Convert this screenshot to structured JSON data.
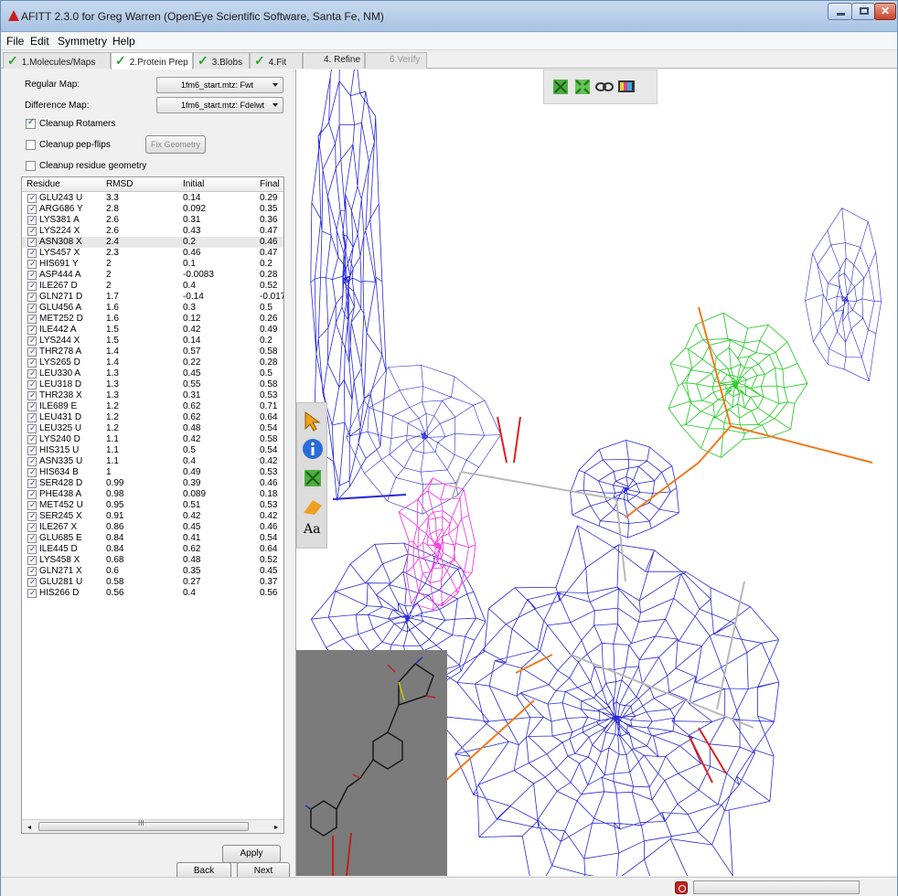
{
  "window": {
    "title": "AFITT 2.3.0 for Greg Warren (OpenEye Scientific Software, Santa Fe, NM)"
  },
  "menu": {
    "items": [
      "File",
      "Edit",
      "Symmetry",
      "Help"
    ]
  },
  "tabs": [
    {
      "label": "1.Molecules/Maps",
      "done": true
    },
    {
      "label": "2.Protein Prep",
      "done": true,
      "active": true
    },
    {
      "label": "3.Blobs",
      "done": true
    },
    {
      "label": "4.Fit",
      "done": true
    },
    {
      "label": "4. Refine",
      "done": false
    },
    {
      "label": "6.Verify",
      "done": false,
      "disabled": true
    }
  ],
  "panel": {
    "regular_map_label": "Regular Map:",
    "regular_map_value": "1fm6_start.mtz: Fwt",
    "difference_map_label": "Difference Map:",
    "difference_map_value": "1fm6_start.mtz: Fdelwt",
    "cleanup_rotamers": {
      "label": "Cleanup Rotamers",
      "checked": true
    },
    "cleanup_pepflips": {
      "label": "Cleanup pep-flips",
      "checked": false
    },
    "fix_geometry_label": "Fix Geometry",
    "cleanup_residue_geometry": {
      "label": "Cleanup residue geometry",
      "checked": false
    }
  },
  "table": {
    "columns": [
      "Residue",
      "RMSD",
      "Initial",
      "Final"
    ],
    "rows": [
      [
        "GLU243 U",
        "3.3",
        "0.14",
        "0.29"
      ],
      [
        "ARG686 Y",
        "2.8",
        "0.092",
        "0.35"
      ],
      [
        "LYS381 A",
        "2.6",
        "0.31",
        "0.36"
      ],
      [
        "LYS224 X",
        "2.6",
        "0.43",
        "0.47"
      ],
      [
        "ASN308 X",
        "2.4",
        "0.2",
        "0.46"
      ],
      [
        "LYS457 X",
        "2.3",
        "0.46",
        "0.47"
      ],
      [
        "HIS691 Y",
        "2",
        "0.1",
        "0.2"
      ],
      [
        "ASP444 A",
        "2",
        "-0.0083",
        "0.28"
      ],
      [
        "ILE267 D",
        "2",
        "0.4",
        "0.52"
      ],
      [
        "GLN271 D",
        "1.7",
        "-0.14",
        "-0.017"
      ],
      [
        "GLU456 A",
        "1.6",
        "0.3",
        "0.5"
      ],
      [
        "MET252 D",
        "1.6",
        "0.12",
        "0.26"
      ],
      [
        "ILE442 A",
        "1.5",
        "0.42",
        "0.49"
      ],
      [
        "LYS244 X",
        "1.5",
        "0.14",
        "0.2"
      ],
      [
        "THR278 A",
        "1.4",
        "0.57",
        "0.58"
      ],
      [
        "LYS265 D",
        "1.4",
        "0.22",
        "0.28"
      ],
      [
        "LEU330 A",
        "1.3",
        "0.45",
        "0.5"
      ],
      [
        "LEU318 D",
        "1.3",
        "0.55",
        "0.58"
      ],
      [
        "THR238 X",
        "1.3",
        "0.31",
        "0.53"
      ],
      [
        "ILE689 E",
        "1.2",
        "0.62",
        "0.71"
      ],
      [
        "LEU431 D",
        "1.2",
        "0.62",
        "0.64"
      ],
      [
        "LEU325 U",
        "1.2",
        "0.48",
        "0.54"
      ],
      [
        "LYS240 D",
        "1.1",
        "0.42",
        "0.58"
      ],
      [
        "HIS315 U",
        "1.1",
        "0.5",
        "0.54"
      ],
      [
        "ASN335 U",
        "1.1",
        "0.4",
        "0.42"
      ],
      [
        "HIS634 B",
        "1",
        "0.49",
        "0.53"
      ],
      [
        "SER428 D",
        "0.99",
        "0.39",
        "0.46"
      ],
      [
        "PHE438 A",
        "0.98",
        "0.089",
        "0.18"
      ],
      [
        "MET452 U",
        "0.95",
        "0.51",
        "0.53"
      ],
      [
        "SER245 X",
        "0.91",
        "0.42",
        "0.42"
      ],
      [
        "ILE267 X",
        "0.86",
        "0.45",
        "0.46"
      ],
      [
        "GLU685 E",
        "0.84",
        "0.41",
        "0.54"
      ],
      [
        "ILE445 D",
        "0.84",
        "0.62",
        "0.64"
      ],
      [
        "LYS458 X",
        "0.68",
        "0.48",
        "0.52"
      ],
      [
        "GLN271 X",
        "0.6",
        "0.35",
        "0.45"
      ],
      [
        "GLU281 U",
        "0.58",
        "0.27",
        "0.37"
      ],
      [
        "HIS266 D",
        "0.56",
        "0.4",
        "0.56"
      ]
    ],
    "selected_row": 4
  },
  "scroll_glyph": "III",
  "buttons": {
    "apply": "Apply",
    "back": "Back",
    "next": "Next"
  },
  "side_toolbar_text_icon": "Aa",
  "colors": {
    "density_mesh": "#2a2ad8",
    "difference_mesh": "#ee44dd",
    "ligand_mesh": "#33cc33",
    "ligand_bonds": "#f07a1a",
    "oxygen": "#e02020",
    "carbon": "#b8b8b8"
  }
}
